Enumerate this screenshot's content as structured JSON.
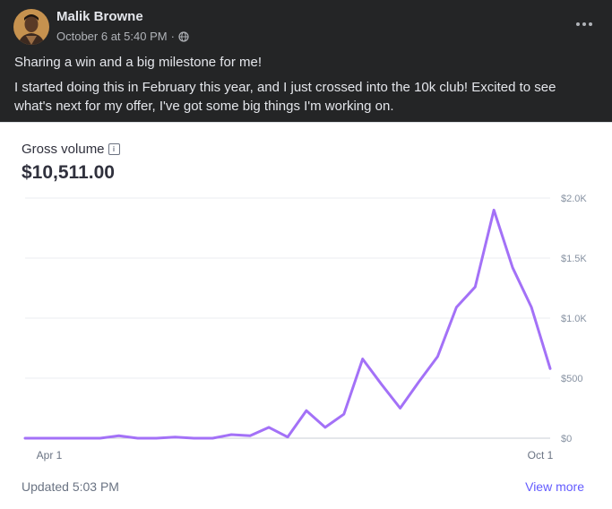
{
  "post": {
    "author": "Malik Browne",
    "timestamp": "October 6 at 5:40 PM",
    "separator": "·",
    "privacy_icon": "globe-icon",
    "more_icon": "more-options-icon",
    "paragraphs": [
      "Sharing a win and a big milestone for me!",
      "I started doing this in February this year, and I just crossed into the 10k club! Excited to see what's next for my offer, I've got some big things I'm working on."
    ]
  },
  "card": {
    "label": "Gross volume",
    "info_icon": "info-icon",
    "value": "$10,511.00",
    "updated": "Updated 5:03 PM",
    "view_more": "View more",
    "accent_color": "#a371f7",
    "link_color": "#635bff"
  },
  "chart_data": {
    "type": "line",
    "x_tick_labels": [
      "Apr 1",
      "Oct 1"
    ],
    "y_tick_labels": [
      "$2.0K",
      "$1.5K",
      "$1.0K",
      "$500",
      "$0"
    ],
    "y_ticks": [
      2000,
      1500,
      1000,
      500,
      0
    ],
    "ylim": [
      0,
      2000
    ],
    "grid": true,
    "series": [
      {
        "values": [
          0,
          0,
          0,
          0,
          0,
          20,
          0,
          0,
          10,
          0,
          0,
          30,
          20,
          90,
          10,
          230,
          90,
          200,
          660,
          450,
          250,
          470,
          680,
          1090,
          1260,
          1900,
          1420,
          1090,
          580
        ]
      }
    ]
  }
}
